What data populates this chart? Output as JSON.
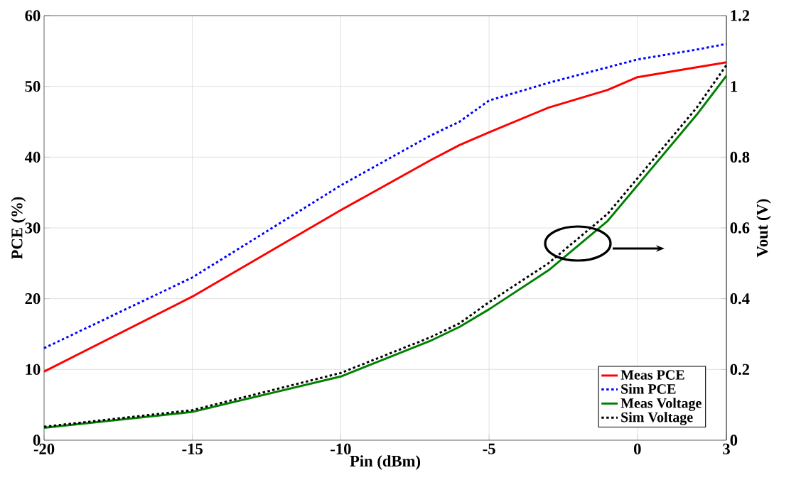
{
  "chart_data": {
    "type": "line",
    "xlabel": "Pin (dBm)",
    "ylabel": "PCE (%)",
    "y2label": "Vout (V)",
    "x": [
      -20,
      -15,
      -10,
      -7,
      -6,
      -5,
      -3,
      -1,
      0,
      2,
      3
    ],
    "series": [
      {
        "name": "Meas PCE",
        "color": "#ff0000",
        "line_style": "solid",
        "values": [
          9.7,
          20.3,
          32.5,
          39.5,
          41.7,
          43.5,
          47,
          49.5,
          51.3,
          52.7,
          53.4
        ]
      },
      {
        "name": "Sim PCE",
        "color": "#0000ff",
        "line_style": "dotted",
        "values": [
          13,
          23,
          36,
          43,
          45,
          48,
          50.5,
          52.7,
          53.8,
          55.2,
          56
        ]
      },
      {
        "name": "Meas Voltage",
        "color": "#008000",
        "line_style": "solid",
        "axis": "y2",
        "values": [
          0.035,
          0.08,
          0.18,
          0.28,
          0.32,
          0.37,
          0.48,
          0.62,
          0.72,
          0.92,
          1.03
        ]
      },
      {
        "name": "Sim Voltage",
        "color": "#000000",
        "line_style": "dotted",
        "axis": "y2",
        "values": [
          0.038,
          0.085,
          0.19,
          0.29,
          0.33,
          0.39,
          0.5,
          0.64,
          0.74,
          0.94,
          1.06
        ]
      }
    ],
    "xlim": [
      -20,
      3
    ],
    "xticks": [
      -20,
      -15,
      -10,
      -5,
      0,
      3
    ],
    "ylim": [
      0,
      60
    ],
    "yticks": [
      0,
      10,
      20,
      30,
      40,
      50,
      60
    ],
    "y2lim": [
      0,
      1.2
    ],
    "y2ticks": [
      0,
      0.2,
      0.4,
      0.6,
      0.8,
      1,
      1.2
    ],
    "grid": true,
    "legend": "bottom right",
    "marker": "none"
  }
}
